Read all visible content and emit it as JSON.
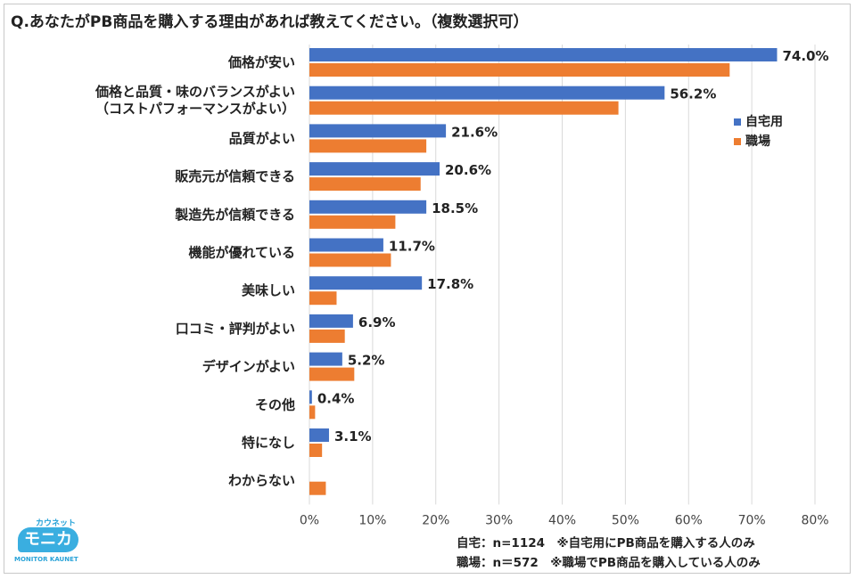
{
  "title": "Q.あなたがPB商品を購入する理由があれば教えてください。（複数選択可）",
  "chart_data": {
    "type": "bar",
    "orientation": "horizontal",
    "categories": [
      [
        "価格が安い"
      ],
      [
        "価格と品質・味のバランスがよい",
        "（コストパフォーマンスがよい）"
      ],
      [
        "品質がよい"
      ],
      [
        "販売元が信頼できる"
      ],
      [
        "製造先が信頼できる"
      ],
      [
        "機能が優れている"
      ],
      [
        "美味しい"
      ],
      [
        "口コミ・評判がよい"
      ],
      [
        "デザインがよい"
      ],
      [
        "その他"
      ],
      [
        "特になし"
      ],
      [
        "わからない"
      ]
    ],
    "series": [
      {
        "name": "自宅用",
        "color": "#4472c4",
        "values": [
          74.0,
          56.2,
          21.6,
          20.6,
          18.5,
          11.7,
          17.8,
          6.9,
          5.2,
          0.4,
          3.1,
          0
        ],
        "labels": [
          "74.0%",
          "56.2%",
          "21.6%",
          "20.6%",
          "18.5%",
          "11.7%",
          "17.8%",
          "6.9%",
          "5.2%",
          "0.4%",
          "3.1%",
          ""
        ]
      },
      {
        "name": "職場",
        "color": "#ed7d31",
        "values": [
          66.5,
          48.9,
          18.5,
          17.6,
          13.6,
          12.9,
          4.3,
          5.6,
          7.1,
          0.9,
          2.0,
          2.6
        ],
        "labels": []
      }
    ],
    "xlim": [
      0,
      80
    ],
    "xticks": [
      0,
      10,
      20,
      30,
      40,
      50,
      60,
      70,
      80
    ],
    "xtick_labels": [
      "0%",
      "10%",
      "20%",
      "30%",
      "40%",
      "50%",
      "60%",
      "70%",
      "80%"
    ],
    "grid": true,
    "legend_position": "right"
  },
  "notes": [
    "自宅：n=1124　※自宅用にPB商品を購入する人のみ",
    "職場：n＝572　※職場でPB商品を購入している人のみ"
  ],
  "logo": {
    "top_text": "カウネット",
    "main_text": "モニカ",
    "sub_text": "MONITOR KAUNET"
  }
}
